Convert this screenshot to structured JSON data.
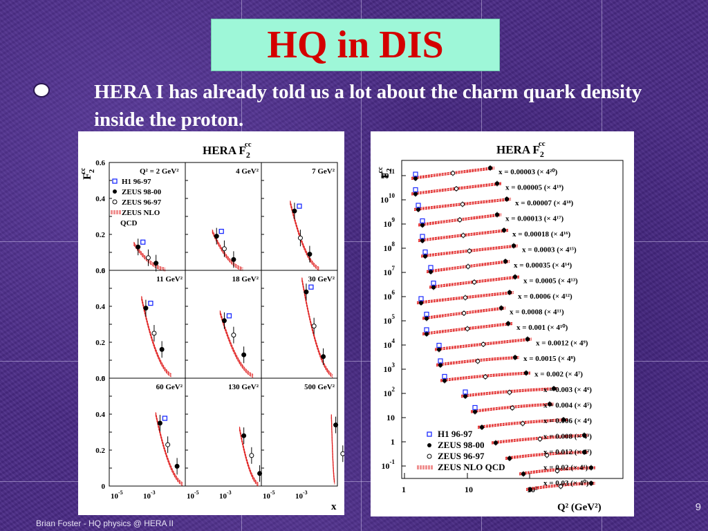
{
  "slide": {
    "title": "HQ in DIS",
    "bullet": "HERA I has already told us a lot about the charm quark density inside the proton.",
    "footer": "Brian Foster - HQ physics @ HERA II",
    "page_number": "9"
  },
  "left_figure": {
    "title_main": "HERA F",
    "title_sub": "2",
    "title_sup": "cc",
    "ylabel_main": "F",
    "ylabel_sub": "2",
    "ylabel_sup": "cc",
    "xlabel": "x",
    "y_ticks": [
      "0",
      "0.2",
      "0.4",
      "0.6"
    ],
    "x_ticks": [
      {
        "base": "10",
        "exp": "-5"
      },
      {
        "base": "10",
        "exp": "-3"
      }
    ],
    "panel_labels": [
      "Q² = 2 GeV²",
      "4 GeV²",
      "7 GeV²",
      "11 GeV²",
      "18 GeV²",
      "30 GeV²",
      "60 GeV²",
      "130 GeV²",
      "500 GeV²"
    ],
    "legend": [
      "H1 96-97",
      "ZEUS 98-00",
      "ZEUS 96-97",
      "ZEUS NLO",
      "QCD"
    ]
  },
  "right_figure": {
    "title_main": "HERA F",
    "title_sub": "2",
    "title_sup": "cc",
    "ylabel_main": "F",
    "ylabel_sub": "2",
    "ylabel_sup": "cc",
    "xlabel": "Q² (GeV²)",
    "x_ticks": [
      "1",
      "10",
      "10²"
    ],
    "y_ticks": [
      {
        "base": "10",
        "exp": "11"
      },
      {
        "base": "10",
        "exp": "10"
      },
      {
        "base": "10",
        "exp": "9"
      },
      {
        "base": "10",
        "exp": "8"
      },
      {
        "base": "10",
        "exp": "7"
      },
      {
        "base": "10",
        "exp": "6"
      },
      {
        "base": "10",
        "exp": "5"
      },
      {
        "base": "10",
        "exp": "4"
      },
      {
        "base": "10",
        "exp": "3"
      },
      {
        "base": "10",
        "exp": "2"
      },
      {
        "base": "10",
        "exp": ""
      },
      {
        "base": "1",
        "exp": ""
      },
      {
        "base": "10",
        "exp": "-1"
      }
    ],
    "series_labels": [
      "x = 0.00003 (× 4²⁰)",
      "x = 0.00005 (× 4¹⁹)",
      "x = 0.00007 (× 4¹⁸)",
      "x = 0.00013 (× 4¹⁷)",
      "x = 0.00018 (× 4¹⁶)",
      "x = 0.0003 (× 4¹⁵)",
      "x = 0.00035 (× 4¹⁴)",
      "x = 0.0005 (× 4¹³)",
      "x = 0.0006 (× 4¹²)",
      "x = 0.0008 (× 4¹¹)",
      "x = 0.001 (× 4¹⁰)",
      "x = 0.0012 (× 4⁹)",
      "x = 0.0015 (× 4⁸)",
      "x = 0.002 (× 4⁷)",
      "x = 0.003 (× 4⁶)",
      "x = 0.004 (× 4⁵)",
      "x = 0.006 (× 4⁴)",
      "x = 0.008 (× 4³)",
      "x = 0.012 (× 4²)",
      "x = 0.02 (× 4¹)",
      "x = 0.03 (× 4⁰)"
    ],
    "legend": [
      "H1 96-97",
      "ZEUS 98-00",
      "ZEUS 96-97",
      "ZEUS NLO QCD"
    ]
  },
  "colors": {
    "title_bg": "#9ef7d8",
    "title_text": "#d40000",
    "background": "#4a2a86",
    "qcd_band": "#e02020",
    "h1_marker": "#1a2aff"
  },
  "chart_data": [
    {
      "type": "scatter",
      "title": "HERA F2cc",
      "xlabel": "x",
      "ylabel": "F2cc",
      "ylim": [
        0,
        0.6
      ],
      "xscale": "log",
      "panels": [
        {
          "label": "Q² = 2 GeV²",
          "points_approx": [
            {
              "x": 6e-05,
              "y": 0.13
            },
            {
              "x": 0.0002,
              "y": 0.07
            },
            {
              "x": 0.0005,
              "y": 0.04
            }
          ]
        },
        {
          "label": "4 GeV²",
          "points_approx": [
            {
              "x": 8e-05,
              "y": 0.19
            },
            {
              "x": 0.0002,
              "y": 0.12
            },
            {
              "x": 0.0006,
              "y": 0.06
            }
          ]
        },
        {
          "label": "7 GeV²",
          "points_approx": [
            {
              "x": 0.0001,
              "y": 0.33
            },
            {
              "x": 0.0002,
              "y": 0.18
            },
            {
              "x": 0.0006,
              "y": 0.09
            }
          ]
        },
        {
          "label": "11 GeV²",
          "points_approx": [
            {
              "x": 0.00015,
              "y": 0.39
            },
            {
              "x": 0.0004,
              "y": 0.25
            },
            {
              "x": 0.001,
              "y": 0.16
            }
          ]
        },
        {
          "label": "18 GeV²",
          "points_approx": [
            {
              "x": 0.0002,
              "y": 0.32
            },
            {
              "x": 0.0006,
              "y": 0.24
            },
            {
              "x": 0.002,
              "y": 0.13
            }
          ]
        },
        {
          "label": "30 GeV²",
          "points_approx": [
            {
              "x": 0.0004,
              "y": 0.48
            },
            {
              "x": 0.001,
              "y": 0.29
            },
            {
              "x": 0.003,
              "y": 0.12
            }
          ]
        },
        {
          "label": "60 GeV²",
          "points_approx": [
            {
              "x": 0.0008,
              "y": 0.35
            },
            {
              "x": 0.002,
              "y": 0.23
            },
            {
              "x": 0.006,
              "y": 0.11
            }
          ]
        },
        {
          "label": "130 GeV²",
          "points_approx": [
            {
              "x": 0.002,
              "y": 0.28
            },
            {
              "x": 0.005,
              "y": 0.17
            },
            {
              "x": 0.013,
              "y": 0.07
            }
          ]
        },
        {
          "label": "500 GeV²",
          "points_approx": [
            {
              "x": 0.013,
              "y": 0.34
            },
            {
              "x": 0.03,
              "y": 0.18
            }
          ]
        }
      ],
      "series": [
        {
          "name": "H1 96-97",
          "marker": "open-square",
          "color": "#1a2aff"
        },
        {
          "name": "ZEUS 98-00",
          "marker": "filled-circle",
          "color": "#000000"
        },
        {
          "name": "ZEUS 96-97",
          "marker": "open-circle",
          "color": "#000000"
        },
        {
          "name": "ZEUS NLO QCD",
          "marker": "band",
          "color": "#e02020"
        }
      ],
      "grid": false,
      "legend_position": "top-left"
    },
    {
      "type": "scatter",
      "title": "HERA F2cc",
      "xlabel": "Q² (GeV²)",
      "ylabel": "F2cc",
      "xscale": "log",
      "yscale": "log",
      "xlim": [
        1,
        1000
      ],
      "ylim": [
        0.1,
        100000000000.0
      ],
      "grid": false,
      "legend_position": "bottom-left"
    }
  ]
}
